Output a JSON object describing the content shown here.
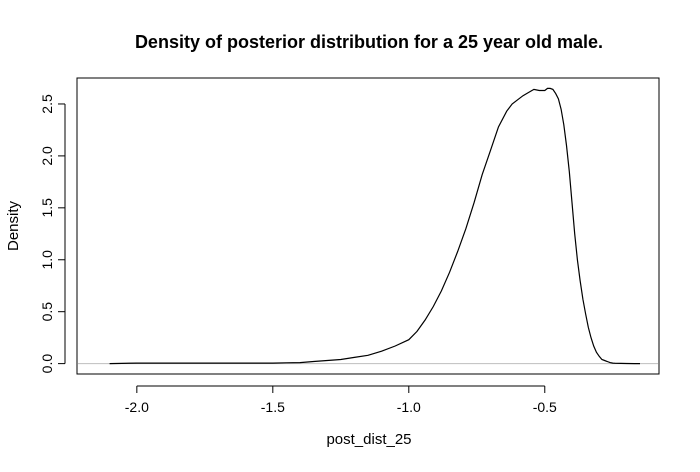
{
  "chart_data": {
    "type": "line",
    "title": "Density of posterior distribution for a 25 year old male.",
    "xlabel": "post_dist_25",
    "ylabel": "Density",
    "xlim": [
      -2.22,
      -0.08
    ],
    "ylim": [
      -0.1,
      2.75
    ],
    "x_ticks": [
      -2.0,
      -1.5,
      -1.0,
      -0.5
    ],
    "x_tick_labels": [
      "-2.0",
      "-1.5",
      "-1.0",
      "-0.5"
    ],
    "y_ticks": [
      0.0,
      0.5,
      1.0,
      1.5,
      2.0,
      2.5
    ],
    "y_tick_labels": [
      "0.0",
      "0.5",
      "1.0",
      "1.5",
      "2.0",
      "2.5"
    ],
    "baseline": 0,
    "series": [
      {
        "x": [
          -2.1,
          -2.0,
          -1.9,
          -1.8,
          -1.7,
          -1.6,
          -1.5,
          -1.45,
          -1.4,
          -1.35,
          -1.3,
          -1.25,
          -1.2,
          -1.15,
          -1.1,
          -1.05,
          -1.0,
          -0.97,
          -0.94,
          -0.91,
          -0.88,
          -0.85,
          -0.82,
          -0.79,
          -0.76,
          -0.73,
          -0.7,
          -0.67,
          -0.64,
          -0.62,
          -0.6,
          -0.58,
          -0.56,
          -0.54,
          -0.52,
          -0.5,
          -0.49,
          -0.48,
          -0.47,
          -0.46,
          -0.45,
          -0.44,
          -0.43,
          -0.42,
          -0.41,
          -0.4,
          -0.39,
          -0.38,
          -0.37,
          -0.36,
          -0.35,
          -0.34,
          -0.33,
          -0.32,
          -0.31,
          -0.3,
          -0.29,
          -0.28,
          -0.27,
          -0.26,
          -0.25,
          -0.24,
          -0.22,
          -0.2,
          -0.17,
          -0.15
        ],
        "y": [
          0.0,
          0.005,
          0.005,
          0.005,
          0.005,
          0.005,
          0.005,
          0.008,
          0.01,
          0.02,
          0.03,
          0.04,
          0.06,
          0.08,
          0.12,
          0.17,
          0.23,
          0.31,
          0.42,
          0.55,
          0.7,
          0.88,
          1.08,
          1.3,
          1.55,
          1.82,
          2.05,
          2.28,
          2.43,
          2.5,
          2.54,
          2.58,
          2.61,
          2.64,
          2.63,
          2.63,
          2.65,
          2.65,
          2.64,
          2.6,
          2.55,
          2.45,
          2.3,
          2.1,
          1.85,
          1.55,
          1.25,
          1.0,
          0.8,
          0.62,
          0.48,
          0.35,
          0.25,
          0.17,
          0.11,
          0.07,
          0.04,
          0.03,
          0.02,
          0.01,
          0.005,
          0.003,
          0.002,
          0.001,
          0.0,
          0.0
        ]
      }
    ]
  }
}
